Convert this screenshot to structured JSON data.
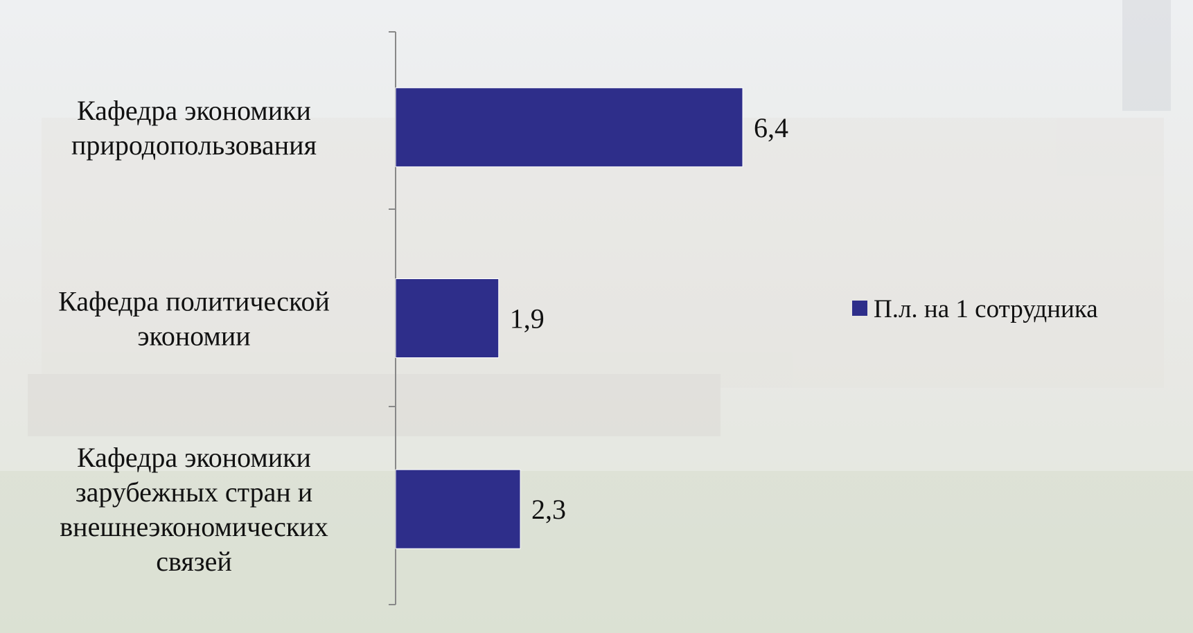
{
  "chart_data": {
    "type": "bar",
    "orientation": "horizontal",
    "categories": [
      "Кафедра экономики\nприродопользования",
      "Кафедра политической\nэкономии",
      "Кафедра экономики\nзарубежных стран и\nвнешнеэкономических\nсвязей"
    ],
    "series": [
      {
        "name": "П.л. на 1 сотрудника",
        "color": "#2e2e8a",
        "values": [
          6.4,
          1.9,
          2.3
        ],
        "value_labels": [
          "6,4",
          "1,9",
          "2,3"
        ]
      }
    ],
    "legend": "right"
  }
}
